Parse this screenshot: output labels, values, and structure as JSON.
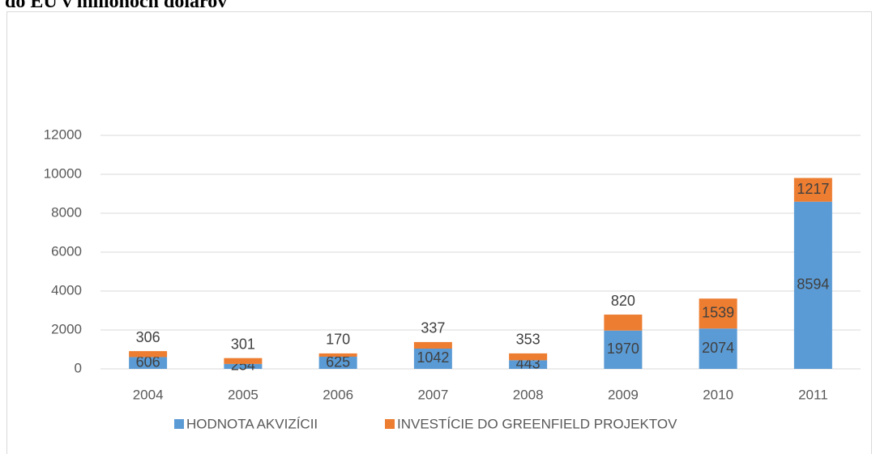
{
  "chart_data": {
    "type": "stacked_bar",
    "title": "do EÚ v miliónoch dolárov",
    "categories": [
      "2004",
      "2005",
      "2006",
      "2007",
      "2008",
      "2009",
      "2010",
      "2011"
    ],
    "series": [
      {
        "name": "HODNOTA AKVIZÍCII",
        "color": "#5b9bd5",
        "values": [
          606,
          254,
          625,
          1042,
          443,
          1970,
          2074,
          8594
        ]
      },
      {
        "name": "INVESTÍCIE DO GREENFIELD PROJEKTOV",
        "color": "#ed7d31",
        "values": [
          306,
          301,
          170,
          337,
          353,
          820,
          1539,
          1217
        ]
      }
    ],
    "ylim": [
      0,
      12000
    ],
    "yticks": [
      0,
      2000,
      4000,
      6000,
      8000,
      10000,
      12000
    ],
    "grid": true,
    "legend": "bottom"
  }
}
